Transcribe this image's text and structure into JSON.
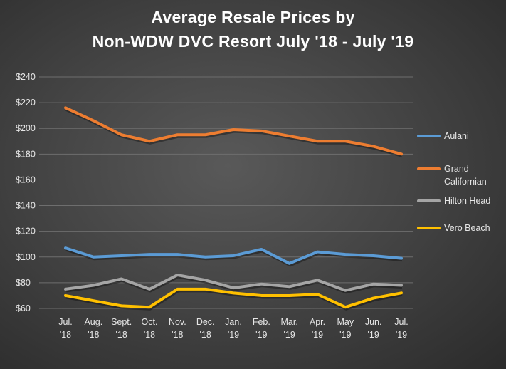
{
  "chart_data": {
    "type": "line",
    "title_line1": "Average Resale Prices by",
    "title_line2": "Non-WDW DVC Resort July '18 - July '19",
    "xlabel": "",
    "ylabel": "",
    "ylim": [
      60,
      240
    ],
    "y_ticks": [
      "$60",
      "$80",
      "$100",
      "$120",
      "$140",
      "$160",
      "$180",
      "$200",
      "$220",
      "$240"
    ],
    "y_tick_values": [
      60,
      80,
      100,
      120,
      140,
      160,
      180,
      200,
      220,
      240
    ],
    "grid": true,
    "legend_position": "right",
    "categories": [
      [
        "Jul.",
        "'18"
      ],
      [
        "Aug.",
        "'18"
      ],
      [
        "Sept.",
        "'18"
      ],
      [
        "Oct.",
        "'18"
      ],
      [
        "Nov.",
        "'18"
      ],
      [
        "Dec.",
        "'18"
      ],
      [
        "Jan.",
        "'19"
      ],
      [
        "Feb.",
        "'19"
      ],
      [
        "Mar.",
        "'19"
      ],
      [
        "Apr.",
        "'19"
      ],
      [
        "May",
        "'19"
      ],
      [
        "Jun.",
        "'19"
      ],
      [
        "Jul.",
        "'19"
      ]
    ],
    "series": [
      {
        "name": "Aulani",
        "label_lines": [
          "Aulani"
        ],
        "color": "#5b9bd5",
        "values": [
          107,
          100,
          101,
          102,
          102,
          100,
          101,
          106,
          95,
          104,
          102,
          101,
          99
        ]
      },
      {
        "name": "Grand Californian",
        "label_lines": [
          "Grand",
          "Californian"
        ],
        "color": "#ed7d31",
        "values": [
          216,
          206,
          195,
          190,
          195,
          195,
          199,
          198,
          194,
          190,
          190,
          186,
          180
        ]
      },
      {
        "name": "Hilton Head",
        "label_lines": [
          "Hilton Head"
        ],
        "color": "#a5a5a5",
        "values": [
          75,
          78,
          83,
          75,
          86,
          82,
          76,
          79,
          77,
          82,
          74,
          79,
          78
        ]
      },
      {
        "name": "Vero Beach",
        "label_lines": [
          "Vero Beach"
        ],
        "color": "#ffc000",
        "values": [
          70,
          66,
          62,
          61,
          75,
          75,
          72,
          70,
          70,
          71,
          61,
          68,
          72
        ]
      }
    ]
  }
}
